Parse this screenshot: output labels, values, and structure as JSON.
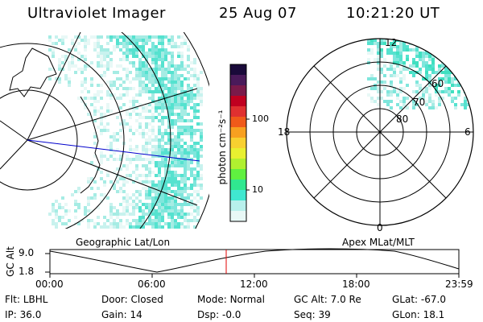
{
  "header": {
    "instrument": "Ultraviolet Imager",
    "date": "25 Aug 07",
    "time": "10:21:20 UT"
  },
  "panels": {
    "left_caption": "Geographic Lat/Lon",
    "right_caption": "Apex MLat/MLT"
  },
  "colorbar": {
    "unit_label": "photon cm⁻²s⁻¹",
    "ticks": [
      "100",
      "10"
    ],
    "colors": [
      "#1a0a3a",
      "#4a1a5a",
      "#7a1a4a",
      "#c00020",
      "#e03030",
      "#f05a1a",
      "#f8a020",
      "#f8d030",
      "#e8f030",
      "#b0f030",
      "#60f040",
      "#30e890",
      "#40e8d0",
      "#b8f0ec",
      "#e8f8f6"
    ]
  },
  "polar": {
    "mlt_labels": {
      "top": "12",
      "left": "18",
      "right": "6",
      "bottom": "0"
    },
    "lat_labels": [
      "60",
      "70",
      "80"
    ]
  },
  "timeline": {
    "axis_label": "GC Alt",
    "y_ticks": [
      "9.0",
      "1.8"
    ],
    "x_ticks": [
      "00:00",
      "06:00",
      "12:00",
      "18:00",
      "23:59"
    ],
    "marker_color": "#e00000"
  },
  "footer": {
    "row1": [
      {
        "key": "Flt:",
        "val": "LBHL"
      },
      {
        "key": "Door:",
        "val": "Closed"
      },
      {
        "key": "Mode:",
        "val": "Normal"
      },
      {
        "key": "GC Alt:",
        "val": "7.0 Re"
      },
      {
        "key": "GLat:",
        "val": "-67.0"
      }
    ],
    "row2": [
      {
        "key": "IP:",
        "val": "36.0"
      },
      {
        "key": "Gain:",
        "val": "14"
      },
      {
        "key": "Dsp:",
        "val": "-0.0"
      },
      {
        "key": "Seq:",
        "val": "39"
      },
      {
        "key": "GLon:",
        "val": "18.1"
      }
    ]
  }
}
